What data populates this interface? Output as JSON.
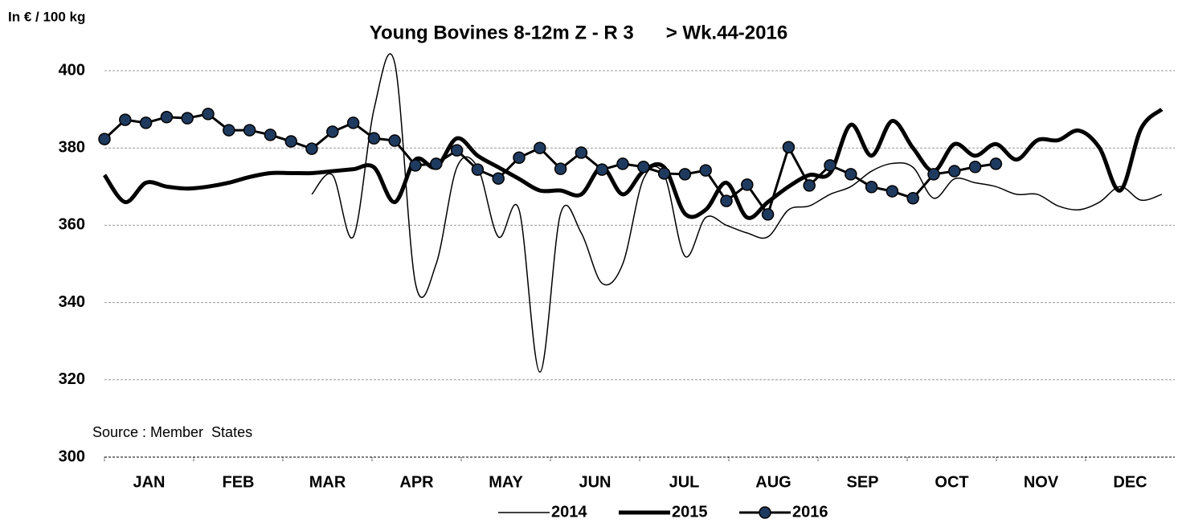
{
  "chart_data": {
    "type": "line",
    "title": "Young Bovines 8-12m Z - R 3      > Wk.44-2016",
    "y_axis_label": "In € / 100 kg",
    "annotation": "Source : Member  States",
    "months": [
      "JAN",
      "FEB",
      "MAR",
      "APR",
      "MAY",
      "JUN",
      "JUL",
      "AUG",
      "SEP",
      "OCT",
      "NOV",
      "DEC"
    ],
    "ylim": [
      300,
      400
    ],
    "yticks": [
      300,
      320,
      340,
      360,
      380,
      400
    ],
    "grid": true,
    "legend": "bottom",
    "series": [
      {
        "name": "2014",
        "color": "#000000",
        "width": 1.5,
        "markers": false,
        "values": [
          null,
          null,
          null,
          null,
          null,
          null,
          null,
          null,
          null,
          null,
          368,
          373,
          357,
          390,
          402,
          345,
          350,
          375,
          375,
          357,
          364,
          322,
          363,
          358,
          345,
          350,
          372,
          373,
          352,
          362,
          360,
          358,
          357,
          364,
          365,
          368,
          370,
          374,
          376,
          375,
          367,
          372,
          371,
          370,
          368,
          368,
          365,
          364,
          366,
          370,
          366.5,
          368
        ]
      },
      {
        "name": "2015",
        "color": "#000000",
        "width": 5,
        "markers": false,
        "values": [
          373,
          366,
          371,
          370,
          369.5,
          370,
          371,
          372.5,
          373.5,
          373.5,
          373.5,
          374,
          374.5,
          375,
          366,
          377,
          375,
          382.5,
          378,
          375,
          372,
          369,
          369,
          368,
          375,
          368,
          374,
          375,
          363,
          364,
          371,
          362,
          366,
          370,
          373,
          373.5,
          386,
          378,
          387,
          380,
          374,
          381,
          378,
          381,
          377,
          382,
          382,
          384.5,
          380,
          369,
          385,
          390
        ]
      },
      {
        "name": "2016",
        "color": "#000000",
        "width": 3,
        "markers": true,
        "marker_color": "#1f3a5f",
        "values": [
          382.3,
          387.3,
          386.5,
          388,
          387.7,
          388.8,
          384.6,
          384.6,
          383.4,
          381.7,
          379.8,
          384.2,
          386.5,
          382.5,
          381.9,
          375.5,
          375.9,
          379.4,
          374.4,
          372.1,
          377.5,
          380,
          374.6,
          378.8,
          374.4,
          375.9,
          375.1,
          373.4,
          373.2,
          374.2,
          366.3,
          370.5,
          362.8,
          380.2,
          370.3,
          375.5,
          373.2,
          369.9,
          368.8,
          367,
          373.2,
          374,
          375.1,
          375.9,
          null,
          null,
          null,
          null,
          null,
          null,
          null,
          null
        ]
      }
    ]
  }
}
